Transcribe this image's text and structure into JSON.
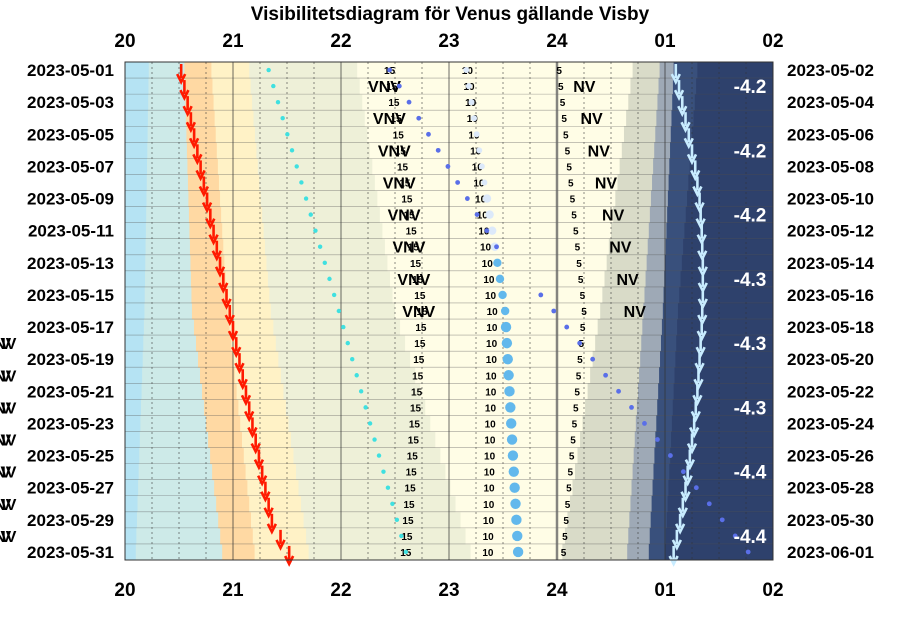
{
  "chart_data": {
    "type": "visibility-diagram",
    "title": "Visibilitetsdiagram för Venus gällande Visby",
    "x_ticks": [
      "20",
      "21",
      "22",
      "23",
      "24",
      "01",
      "02"
    ],
    "x_range": [
      "20:00",
      "02:00"
    ],
    "left_dates": [
      "2023-05-01",
      "2023-05-03",
      "2023-05-05",
      "2023-05-07",
      "2023-05-09",
      "2023-05-11",
      "2023-05-13",
      "2023-05-15",
      "2023-05-17",
      "2023-05-19",
      "2023-05-21",
      "2023-05-23",
      "2023-05-25",
      "2023-05-27",
      "2023-05-29",
      "2023-05-31"
    ],
    "right_dates": [
      "2023-05-02",
      "2023-05-04",
      "2023-05-06",
      "2023-05-08",
      "2023-05-10",
      "2023-05-12",
      "2023-05-14",
      "2023-05-16",
      "2023-05-18",
      "2023-05-20",
      "2023-05-22",
      "2023-05-24",
      "2023-05-26",
      "2023-05-28",
      "2023-05-30",
      "2023-06-01"
    ],
    "sunset_hours": [
      20.52,
      20.58,
      20.64,
      20.7,
      20.76,
      20.82,
      20.88,
      20.94,
      21.0,
      21.06,
      21.12,
      21.18,
      21.24,
      21.3,
      21.36,
      21.52
    ],
    "venus_set_hours": [
      25.1,
      25.16,
      25.22,
      25.28,
      25.32,
      25.34,
      25.35,
      25.35,
      25.34,
      25.32,
      25.3,
      25.27,
      25.23,
      25.19,
      25.14,
      25.08
    ],
    "altitude_labels": [
      "15",
      "10",
      "5"
    ],
    "alt15_hours": [
      22.45,
      22.75,
      22.6
    ],
    "alt10_hours": [
      23.17,
      23.4,
      23.36
    ],
    "alt5_hours": [
      24.02,
      24.25,
      24.06
    ],
    "direction_labels": [
      "VNV",
      "NV"
    ],
    "vnv_hours": [
      22.38,
      22.72
    ],
    "nv_hours": [
      24.22,
      24.72
    ],
    "magnitudes": [
      "-4.2",
      "-4.2",
      "-4.2",
      "-4.3",
      "-4.3",
      "-4.3",
      "-4.4",
      "-4.4"
    ],
    "magnitude_rows": [
      1,
      5,
      9,
      13,
      17,
      21,
      25,
      29
    ],
    "colors": {
      "sunset_arrow": "#ff1a00",
      "venus_set_arrow": "#c8ecff",
      "twilight_light_blue": "#a9dff0",
      "twilight_cream": "#fffbe0",
      "night_dark": "#233360",
      "sunset_orange": "#ffc98a"
    }
  }
}
